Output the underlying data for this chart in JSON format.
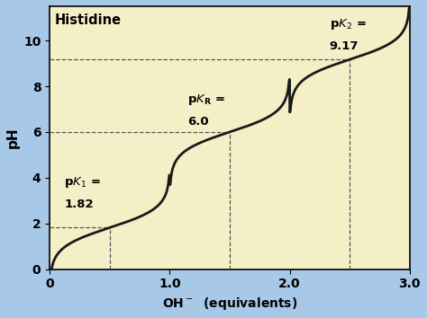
{
  "title": "Histidine",
  "xlabel_base": "OH",
  "ylabel": "pH",
  "xlim": [
    0,
    3.0
  ],
  "ylim": [
    0,
    11.5
  ],
  "xticks": [
    0,
    1.0,
    2.0,
    3.0
  ],
  "yticks": [
    0,
    2,
    4,
    6,
    8,
    10
  ],
  "xtick_labels": [
    "0",
    "1.0",
    "2.0",
    "3.0"
  ],
  "ytick_labels": [
    "0",
    "2",
    "4",
    "6",
    "8",
    "10"
  ],
  "background_color": "#f5efc8",
  "outer_color": "#a8c8e8",
  "line_color": "#1a1a1a",
  "dashed_color": "#555555",
  "pk1_x": 0.5,
  "pk1_y": 1.82,
  "pkR_x": 1.5,
  "pkR_y": 6.0,
  "pk2_x": 2.5,
  "pk2_y": 9.17
}
